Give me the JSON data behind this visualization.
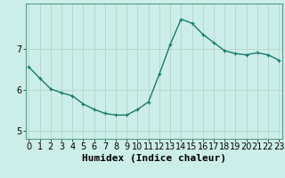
{
  "x": [
    0,
    1,
    2,
    3,
    4,
    5,
    6,
    7,
    8,
    9,
    10,
    11,
    12,
    13,
    14,
    15,
    16,
    17,
    18,
    19,
    20,
    21,
    22,
    23
  ],
  "y": [
    6.55,
    6.28,
    6.02,
    5.92,
    5.85,
    5.65,
    5.52,
    5.42,
    5.38,
    5.38,
    5.52,
    5.7,
    6.38,
    7.1,
    7.72,
    7.62,
    7.35,
    7.15,
    6.95,
    6.88,
    6.85,
    6.9,
    6.85,
    6.72
  ],
  "line_color": "#1a7a6a",
  "marker": "+",
  "marker_size": 3,
  "bg_color": "#cceee8",
  "grid_color": "#b8d8d0",
  "xlabel": "Humidex (Indice chaleur)",
  "xlabel_fontsize": 8,
  "tick_fontsize": 7,
  "ylim": [
    4.8,
    8.1
  ],
  "yticks": [
    5,
    6,
    7
  ],
  "xlim": [
    -0.3,
    23.3
  ],
  "xticks": [
    0,
    1,
    2,
    3,
    4,
    5,
    6,
    7,
    8,
    9,
    10,
    11,
    12,
    13,
    14,
    15,
    16,
    17,
    18,
    19,
    20,
    21,
    22,
    23
  ],
  "linewidth": 1.0
}
